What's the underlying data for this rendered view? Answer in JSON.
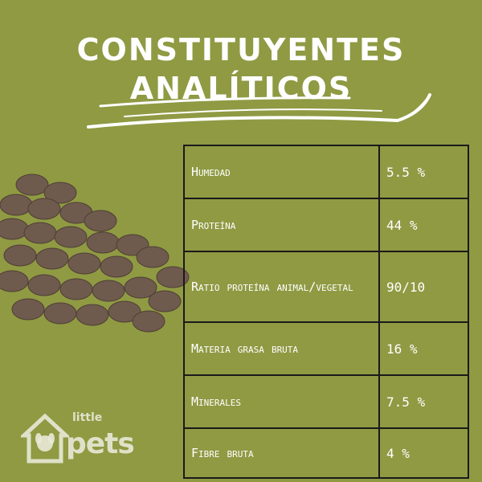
{
  "colors": {
    "background": "#8f9a43",
    "text": "#ffffff",
    "border": "#1a1a1a",
    "kibble": "#6f5a4e"
  },
  "title": {
    "line1": "CONSTITUYENTES",
    "line2": "ANALÍTICOS"
  },
  "table": {
    "rows": [
      {
        "label": "Humedad",
        "value": "5.5 %"
      },
      {
        "label": "Proteína",
        "value": "44 %"
      },
      {
        "label": "Ratio proteína animal/vegetal",
        "value": "90/10"
      },
      {
        "label": "Materia grasa bruta",
        "value": "16 %"
      },
      {
        "label": "Minerales",
        "value": "7.5 %"
      },
      {
        "label": "Fibre bruta",
        "value": "4 %"
      }
    ]
  },
  "logo": {
    "small": "little",
    "large": "pets",
    "icon": "house-dog-icon"
  }
}
